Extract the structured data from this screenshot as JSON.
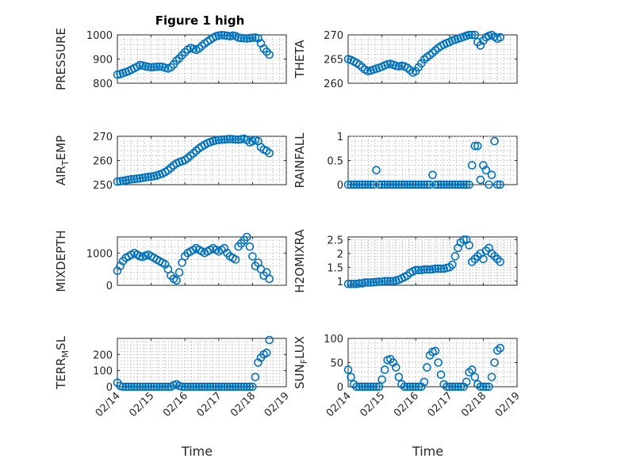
{
  "figure": {
    "title": "Figure 1 high",
    "time_label": "Time",
    "marker_color": "#0072bd"
  },
  "chart_data": [
    {
      "type": "scatter",
      "ylabel": "PRESSURE",
      "xlabel": "",
      "xlim": [
        "02/14",
        "02/19"
      ],
      "x_ticks": [
        "02/14",
        "02/15",
        "02/16",
        "02/17",
        "02/18",
        "02/19"
      ],
      "ylim": [
        800,
        1000
      ],
      "y_ticks": [
        "800",
        "900",
        "1000"
      ],
      "grid": true,
      "x": [
        "02/14 00:00",
        "02/14 02:00",
        "02/14 04:00",
        "02/14 06:00",
        "02/14 08:00",
        "02/14 10:00",
        "02/14 12:00",
        "02/14 14:00",
        "02/14 16:00",
        "02/14 18:00",
        "02/14 20:00",
        "02/14 22:00",
        "02/15 00:00",
        "02/15 02:00",
        "02/15 04:00",
        "02/15 06:00",
        "02/15 08:00",
        "02/15 10:00",
        "02/15 12:00",
        "02/15 14:00",
        "02/15 16:00",
        "02/15 18:00",
        "02/15 20:00",
        "02/15 22:00",
        "02/16 00:00",
        "02/16 02:00",
        "02/16 04:00",
        "02/16 06:00",
        "02/16 08:00",
        "02/16 10:00",
        "02/16 12:00",
        "02/16 14:00",
        "02/16 16:00",
        "02/16 18:00",
        "02/16 20:00",
        "02/16 22:00",
        "02/17 00:00",
        "02/17 02:00",
        "02/17 04:00",
        "02/17 06:00",
        "02/17 08:00",
        "02/17 10:00",
        "02/17 12:00",
        "02/17 14:00",
        "02/17 16:00",
        "02/17 18:00",
        "02/17 20:00",
        "02/17 22:00",
        "02/18 00:00",
        "02/18 02:00",
        "02/18 04:00",
        "02/18 06:00",
        "02/18 08:00",
        "02/18 10:00",
        "02/18 12:00"
      ],
      "y": [
        835,
        838,
        842,
        846,
        850,
        856,
        862,
        868,
        875,
        873,
        870,
        868,
        866,
        867,
        868,
        869,
        868,
        864,
        861,
        866,
        878,
        893,
        903,
        916,
        928,
        939,
        946,
        942,
        938,
        944,
        954,
        964,
        972,
        980,
        988,
        994,
        997,
        999,
        998,
        996,
        994,
        997,
        995,
        989,
        987,
        986,
        985,
        987,
        988,
        989,
        986,
        965,
        943,
        930,
        918
      ]
    },
    {
      "type": "scatter",
      "ylabel": "THETA",
      "xlabel": "",
      "xlim": [
        "02/14",
        "02/19"
      ],
      "x_ticks": [
        "02/14",
        "02/15",
        "02/16",
        "02/17",
        "02/18",
        "02/19"
      ],
      "ylim": [
        260,
        270
      ],
      "y_ticks": [
        "260",
        "265",
        "270"
      ],
      "grid": true,
      "x": [
        "02/14 00:00",
        "02/14 02:00",
        "02/14 04:00",
        "02/14 06:00",
        "02/14 08:00",
        "02/14 10:00",
        "02/14 12:00",
        "02/14 14:00",
        "02/14 16:00",
        "02/14 18:00",
        "02/14 20:00",
        "02/14 22:00",
        "02/15 00:00",
        "02/15 02:00",
        "02/15 04:00",
        "02/15 06:00",
        "02/15 08:00",
        "02/15 10:00",
        "02/15 12:00",
        "02/15 14:00",
        "02/15 16:00",
        "02/15 18:00",
        "02/15 20:00",
        "02/15 22:00",
        "02/16 00:00",
        "02/16 02:00",
        "02/16 04:00",
        "02/16 06:00",
        "02/16 08:00",
        "02/16 10:00",
        "02/16 12:00",
        "02/16 14:00",
        "02/16 16:00",
        "02/16 18:00",
        "02/16 20:00",
        "02/16 22:00",
        "02/17 00:00",
        "02/17 02:00",
        "02/17 04:00",
        "02/17 06:00",
        "02/17 08:00",
        "02/17 10:00",
        "02/17 12:00",
        "02/17 14:00",
        "02/17 16:00",
        "02/17 18:00",
        "02/17 20:00",
        "02/17 22:00",
        "02/18 00:00",
        "02/18 02:00",
        "02/18 04:00",
        "02/18 06:00",
        "02/18 08:00",
        "02/18 10:00",
        "02/18 12:00"
      ],
      "y": [
        265,
        264.8,
        264.5,
        264.2,
        263.8,
        263.3,
        262.8,
        262.5,
        262.6,
        262.8,
        263.0,
        263.2,
        263.4,
        263.7,
        263.9,
        264.0,
        263.8,
        263.6,
        263.5,
        263.6,
        263.5,
        263.2,
        262.7,
        262.2,
        262.5,
        263.3,
        264.1,
        264.9,
        265.4,
        265.8,
        266.3,
        266.8,
        267.3,
        267.7,
        268.0,
        268.3,
        268.5,
        268.8,
        269.0,
        269.2,
        269.4,
        269.6,
        269.8,
        270.0,
        270.2,
        270.0,
        268.5,
        267.8,
        268.8,
        269.5,
        269.8,
        270.0,
        269.6,
        269.2,
        269.5
      ]
    },
    {
      "type": "scatter",
      "ylabel": "AIR",
      "ylabel_sub": "T",
      "ylabel_rest": "EMP",
      "xlabel": "",
      "xlim": [
        "02/14",
        "02/19"
      ],
      "x_ticks": [
        "02/14",
        "02/15",
        "02/16",
        "02/17",
        "02/18",
        "02/19"
      ],
      "ylim": [
        250,
        270
      ],
      "y_ticks": [
        "250",
        "260",
        "270"
      ],
      "grid": true,
      "x": [
        "02/14 00:00",
        "02/14 02:00",
        "02/14 04:00",
        "02/14 06:00",
        "02/14 08:00",
        "02/14 10:00",
        "02/14 12:00",
        "02/14 14:00",
        "02/14 16:00",
        "02/14 18:00",
        "02/14 20:00",
        "02/14 22:00",
        "02/15 00:00",
        "02/15 02:00",
        "02/15 04:00",
        "02/15 06:00",
        "02/15 08:00",
        "02/15 10:00",
        "02/15 12:00",
        "02/15 14:00",
        "02/15 16:00",
        "02/15 18:00",
        "02/15 20:00",
        "02/15 22:00",
        "02/16 00:00",
        "02/16 02:00",
        "02/16 04:00",
        "02/16 06:00",
        "02/16 08:00",
        "02/16 10:00",
        "02/16 12:00",
        "02/16 14:00",
        "02/16 16:00",
        "02/16 18:00",
        "02/16 20:00",
        "02/16 22:00",
        "02/17 00:00",
        "02/17 02:00",
        "02/17 04:00",
        "02/17 06:00",
        "02/17 08:00",
        "02/17 10:00",
        "02/17 12:00",
        "02/17 14:00",
        "02/17 16:00",
        "02/17 18:00",
        "02/17 20:00",
        "02/17 22:00",
        "02/18 00:00",
        "02/18 02:00",
        "02/18 04:00",
        "02/18 06:00",
        "02/18 08:00",
        "02/18 10:00",
        "02/18 12:00"
      ],
      "y": [
        251.2,
        251.4,
        251.6,
        251.8,
        252.0,
        252.2,
        252.3,
        252.5,
        252.6,
        252.8,
        253.0,
        253.2,
        253.3,
        253.5,
        253.8,
        254.2,
        254.6,
        255.2,
        256.0,
        257.0,
        258.0,
        258.8,
        259.3,
        259.7,
        260.2,
        261.0,
        262.0,
        263.0,
        264.0,
        265.0,
        265.8,
        266.5,
        267.1,
        267.6,
        268.0,
        268.3,
        268.5,
        268.6,
        268.7,
        268.8,
        268.9,
        268.8,
        268.7,
        268.6,
        268.8,
        269.0,
        268.5,
        267.5,
        268.0,
        268.5,
        268.0,
        265.5,
        264.5,
        264.0,
        263.0
      ]
    },
    {
      "type": "scatter",
      "ylabel": "RAINFALL",
      "xlabel": "",
      "xlim": [
        "02/14",
        "02/19"
      ],
      "x_ticks": [
        "02/14",
        "02/15",
        "02/16",
        "02/17",
        "02/18",
        "02/19"
      ],
      "ylim": [
        0,
        1
      ],
      "y_ticks": [
        "0",
        "0.5",
        "1"
      ],
      "grid": true,
      "x": [
        "02/14 00:00",
        "02/14 02:00",
        "02/14 04:00",
        "02/14 06:00",
        "02/14 08:00",
        "02/14 10:00",
        "02/14 12:00",
        "02/14 14:00",
        "02/14 16:00",
        "02/14 18:00",
        "02/14 20:00",
        "02/14 22:00",
        "02/15 00:00",
        "02/15 02:00",
        "02/15 04:00",
        "02/15 06:00",
        "02/15 08:00",
        "02/15 10:00",
        "02/15 12:00",
        "02/15 14:00",
        "02/15 16:00",
        "02/15 18:00",
        "02/15 20:00",
        "02/15 22:00",
        "02/16 00:00",
        "02/16 02:00",
        "02/16 04:00",
        "02/16 06:00",
        "02/16 08:00",
        "02/16 10:00",
        "02/16 12:00",
        "02/16 14:00",
        "02/16 16:00",
        "02/16 18:00",
        "02/16 20:00",
        "02/16 22:00",
        "02/17 00:00",
        "02/17 02:00",
        "02/17 04:00",
        "02/17 06:00",
        "02/17 08:00",
        "02/17 10:00",
        "02/17 12:00",
        "02/17 14:00",
        "02/17 16:00",
        "02/17 18:00",
        "02/17 20:00",
        "02/17 22:00",
        "02/18 00:00",
        "02/18 02:00",
        "02/18 04:00",
        "02/18 06:00",
        "02/18 08:00",
        "02/18 10:00",
        "02/18 12:00"
      ],
      "y": [
        0,
        0,
        0,
        0,
        0,
        0,
        0,
        0,
        0,
        0,
        0.3,
        0,
        0,
        0,
        0,
        0,
        0,
        0,
        0,
        0,
        0,
        0,
        0,
        0,
        0,
        0,
        0,
        0,
        0,
        0,
        0.2,
        0,
        0,
        0,
        0,
        0,
        0,
        0,
        0,
        0,
        0,
        0,
        0,
        0,
        0.4,
        0.8,
        0.8,
        0.1,
        0.4,
        0.3,
        0,
        0.2,
        0.9,
        0,
        0
      ]
    },
    {
      "type": "scatter",
      "ylabel": "MIXDEPTH",
      "xlabel": "",
      "xlim": [
        "02/14",
        "02/19"
      ],
      "x_ticks": [
        "02/14",
        "02/15",
        "02/16",
        "02/17",
        "02/18",
        "02/19"
      ],
      "ylim": [
        0,
        1500
      ],
      "y_ticks": [
        "0",
        "1000"
      ],
      "grid": true,
      "x": [
        "02/14 00:00",
        "02/14 02:00",
        "02/14 04:00",
        "02/14 06:00",
        "02/14 08:00",
        "02/14 10:00",
        "02/14 12:00",
        "02/14 14:00",
        "02/14 16:00",
        "02/14 18:00",
        "02/14 20:00",
        "02/14 22:00",
        "02/15 00:00",
        "02/15 02:00",
        "02/15 04:00",
        "02/15 06:00",
        "02/15 08:00",
        "02/15 10:00",
        "02/15 12:00",
        "02/15 14:00",
        "02/15 16:00",
        "02/15 18:00",
        "02/15 20:00",
        "02/15 22:00",
        "02/16 00:00",
        "02/16 02:00",
        "02/16 04:00",
        "02/16 06:00",
        "02/16 08:00",
        "02/16 10:00",
        "02/16 12:00",
        "02/16 14:00",
        "02/16 16:00",
        "02/16 18:00",
        "02/16 20:00",
        "02/16 22:00",
        "02/17 00:00",
        "02/17 02:00",
        "02/17 04:00",
        "02/17 06:00",
        "02/17 08:00",
        "02/17 10:00",
        "02/17 12:00",
        "02/17 14:00",
        "02/17 16:00",
        "02/17 18:00",
        "02/17 20:00",
        "02/17 22:00",
        "02/18 00:00",
        "02/18 02:00",
        "02/18 04:00",
        "02/18 06:00",
        "02/18 08:00",
        "02/18 10:00",
        "02/18 12:00"
      ],
      "y": [
        450,
        600,
        750,
        850,
        900,
        950,
        1000,
        950,
        900,
        880,
        920,
        950,
        900,
        850,
        800,
        750,
        700,
        650,
        500,
        300,
        200,
        150,
        400,
        700,
        900,
        1000,
        1050,
        1100,
        1150,
        1100,
        1050,
        1000,
        1050,
        1100,
        1150,
        1100,
        1050,
        1100,
        1150,
        1000,
        900,
        850,
        800,
        1200,
        1300,
        1400,
        1500,
        1200,
        900,
        600,
        700,
        500,
        300,
        400,
        200
      ]
    },
    {
      "type": "scatter",
      "ylabel": "H2OMIXRA",
      "xlabel": "",
      "xlim": [
        "02/14",
        "02/19"
      ],
      "x_ticks": [
        "02/14",
        "02/15",
        "02/16",
        "02/17",
        "02/18",
        "02/19"
      ],
      "ylim": [
        0.85,
        2.6
      ],
      "y_ticks": [
        "1",
        "1.5",
        "2",
        "2.5"
      ],
      "grid": true,
      "x": [
        "02/14 00:00",
        "02/14 02:00",
        "02/14 04:00",
        "02/14 06:00",
        "02/14 08:00",
        "02/14 10:00",
        "02/14 12:00",
        "02/14 14:00",
        "02/14 16:00",
        "02/14 18:00",
        "02/14 20:00",
        "02/14 22:00",
        "02/15 00:00",
        "02/15 02:00",
        "02/15 04:00",
        "02/15 06:00",
        "02/15 08:00",
        "02/15 10:00",
        "02/15 12:00",
        "02/15 14:00",
        "02/15 16:00",
        "02/15 18:00",
        "02/15 20:00",
        "02/15 22:00",
        "02/16 00:00",
        "02/16 02:00",
        "02/16 04:00",
        "02/16 06:00",
        "02/16 08:00",
        "02/16 10:00",
        "02/16 12:00",
        "02/16 14:00",
        "02/16 16:00",
        "02/16 18:00",
        "02/16 20:00",
        "02/16 22:00",
        "02/17 00:00",
        "02/17 02:00",
        "02/17 04:00",
        "02/17 06:00",
        "02/17 08:00",
        "02/17 10:00",
        "02/17 12:00",
        "02/17 14:00",
        "02/17 16:00",
        "02/17 18:00",
        "02/17 20:00",
        "02/17 22:00",
        "02/18 00:00",
        "02/18 02:00",
        "02/18 04:00",
        "02/18 06:00",
        "02/18 08:00",
        "02/18 10:00",
        "02/18 12:00"
      ],
      "y": [
        0.9,
        0.9,
        0.9,
        0.9,
        0.92,
        0.92,
        0.95,
        0.95,
        0.95,
        0.96,
        0.97,
        0.98,
        0.98,
        1.0,
        1.0,
        1.0,
        1.0,
        1.02,
        1.05,
        1.1,
        1.15,
        1.2,
        1.3,
        1.35,
        1.4,
        1.4,
        1.4,
        1.42,
        1.42,
        1.42,
        1.43,
        1.45,
        1.45,
        1.45,
        1.45,
        1.48,
        1.5,
        1.6,
        1.9,
        2.2,
        2.4,
        2.5,
        2.5,
        2.3,
        1.7,
        1.8,
        1.9,
        2.0,
        1.8,
        2.1,
        2.2,
        2.0,
        1.9,
        1.8,
        1.7
      ]
    },
    {
      "type": "scatter",
      "ylabel": "TERR",
      "ylabel_sub": "M",
      "ylabel_rest": "SL",
      "xlabel": "Time",
      "xlim": [
        "02/14",
        "02/19"
      ],
      "x_ticks": [
        "02/14",
        "02/15",
        "02/16",
        "02/17",
        "02/18",
        "02/19"
      ],
      "ylim": [
        0,
        300
      ],
      "y_ticks": [
        "0",
        "100",
        "200"
      ],
      "grid": true,
      "x": [
        "02/14 00:00",
        "02/14 02:00",
        "02/14 04:00",
        "02/14 06:00",
        "02/14 08:00",
        "02/14 10:00",
        "02/14 12:00",
        "02/14 14:00",
        "02/14 16:00",
        "02/14 18:00",
        "02/14 20:00",
        "02/14 22:00",
        "02/15 00:00",
        "02/15 02:00",
        "02/15 04:00",
        "02/15 06:00",
        "02/15 08:00",
        "02/15 10:00",
        "02/15 12:00",
        "02/15 14:00",
        "02/15 16:00",
        "02/15 18:00",
        "02/15 20:00",
        "02/15 22:00",
        "02/16 00:00",
        "02/16 02:00",
        "02/16 04:00",
        "02/16 06:00",
        "02/16 08:00",
        "02/16 10:00",
        "02/16 12:00",
        "02/16 14:00",
        "02/16 16:00",
        "02/16 18:00",
        "02/16 20:00",
        "02/16 22:00",
        "02/17 00:00",
        "02/17 02:00",
        "02/17 04:00",
        "02/17 06:00",
        "02/17 08:00",
        "02/17 10:00",
        "02/17 12:00",
        "02/17 14:00",
        "02/17 16:00",
        "02/17 18:00",
        "02/17 20:00",
        "02/17 22:00",
        "02/18 00:00",
        "02/18 02:00",
        "02/18 04:00",
        "02/18 06:00",
        "02/18 08:00",
        "02/18 10:00",
        "02/18 12:00"
      ],
      "y": [
        25,
        5,
        0,
        0,
        0,
        0,
        0,
        0,
        0,
        0,
        0,
        0,
        0,
        0,
        0,
        0,
        0,
        0,
        0,
        0,
        10,
        15,
        5,
        0,
        0,
        0,
        0,
        0,
        0,
        0,
        0,
        0,
        0,
        0,
        0,
        0,
        0,
        0,
        0,
        0,
        0,
        0,
        0,
        0,
        0,
        0,
        0,
        0,
        0,
        60,
        150,
        180,
        200,
        210,
        290
      ]
    },
    {
      "type": "scatter",
      "ylabel": "SUN",
      "ylabel_sub": "F",
      "ylabel_rest": "LUX",
      "xlabel": "Time",
      "xlim": [
        "02/14",
        "02/19"
      ],
      "x_ticks": [
        "02/14",
        "02/15",
        "02/16",
        "02/17",
        "02/18",
        "02/19"
      ],
      "ylim": [
        0,
        100
      ],
      "y_ticks": [
        "0",
        "50",
        "100"
      ],
      "grid": true,
      "x": [
        "02/14 00:00",
        "02/14 02:00",
        "02/14 04:00",
        "02/14 06:00",
        "02/14 08:00",
        "02/14 10:00",
        "02/14 12:00",
        "02/14 14:00",
        "02/14 16:00",
        "02/14 18:00",
        "02/14 20:00",
        "02/14 22:00",
        "02/15 00:00",
        "02/15 02:00",
        "02/15 04:00",
        "02/15 06:00",
        "02/15 08:00",
        "02/15 10:00",
        "02/15 12:00",
        "02/15 14:00",
        "02/15 16:00",
        "02/15 18:00",
        "02/15 20:00",
        "02/15 22:00",
        "02/16 00:00",
        "02/16 02:00",
        "02/16 04:00",
        "02/16 06:00",
        "02/16 08:00",
        "02/16 10:00",
        "02/16 12:00",
        "02/16 14:00",
        "02/16 16:00",
        "02/16 18:00",
        "02/16 20:00",
        "02/16 22:00",
        "02/17 00:00",
        "02/17 02:00",
        "02/17 04:00",
        "02/17 06:00",
        "02/17 08:00",
        "02/17 10:00",
        "02/17 12:00",
        "02/17 14:00",
        "02/17 16:00",
        "02/17 18:00",
        "02/17 20:00",
        "02/17 22:00",
        "02/18 00:00",
        "02/18 02:00",
        "02/18 04:00",
        "02/18 06:00",
        "02/18 08:00",
        "02/18 10:00",
        "02/18 12:00"
      ],
      "y": [
        35,
        20,
        5,
        0,
        0,
        0,
        0,
        0,
        0,
        0,
        0,
        0,
        15,
        35,
        55,
        57,
        50,
        40,
        20,
        5,
        0,
        0,
        0,
        0,
        0,
        0,
        0,
        10,
        40,
        65,
        72,
        74,
        50,
        25,
        5,
        0,
        0,
        0,
        0,
        0,
        0,
        0,
        10,
        30,
        35,
        20,
        5,
        0,
        0,
        0,
        0,
        20,
        50,
        75,
        80
      ]
    }
  ]
}
